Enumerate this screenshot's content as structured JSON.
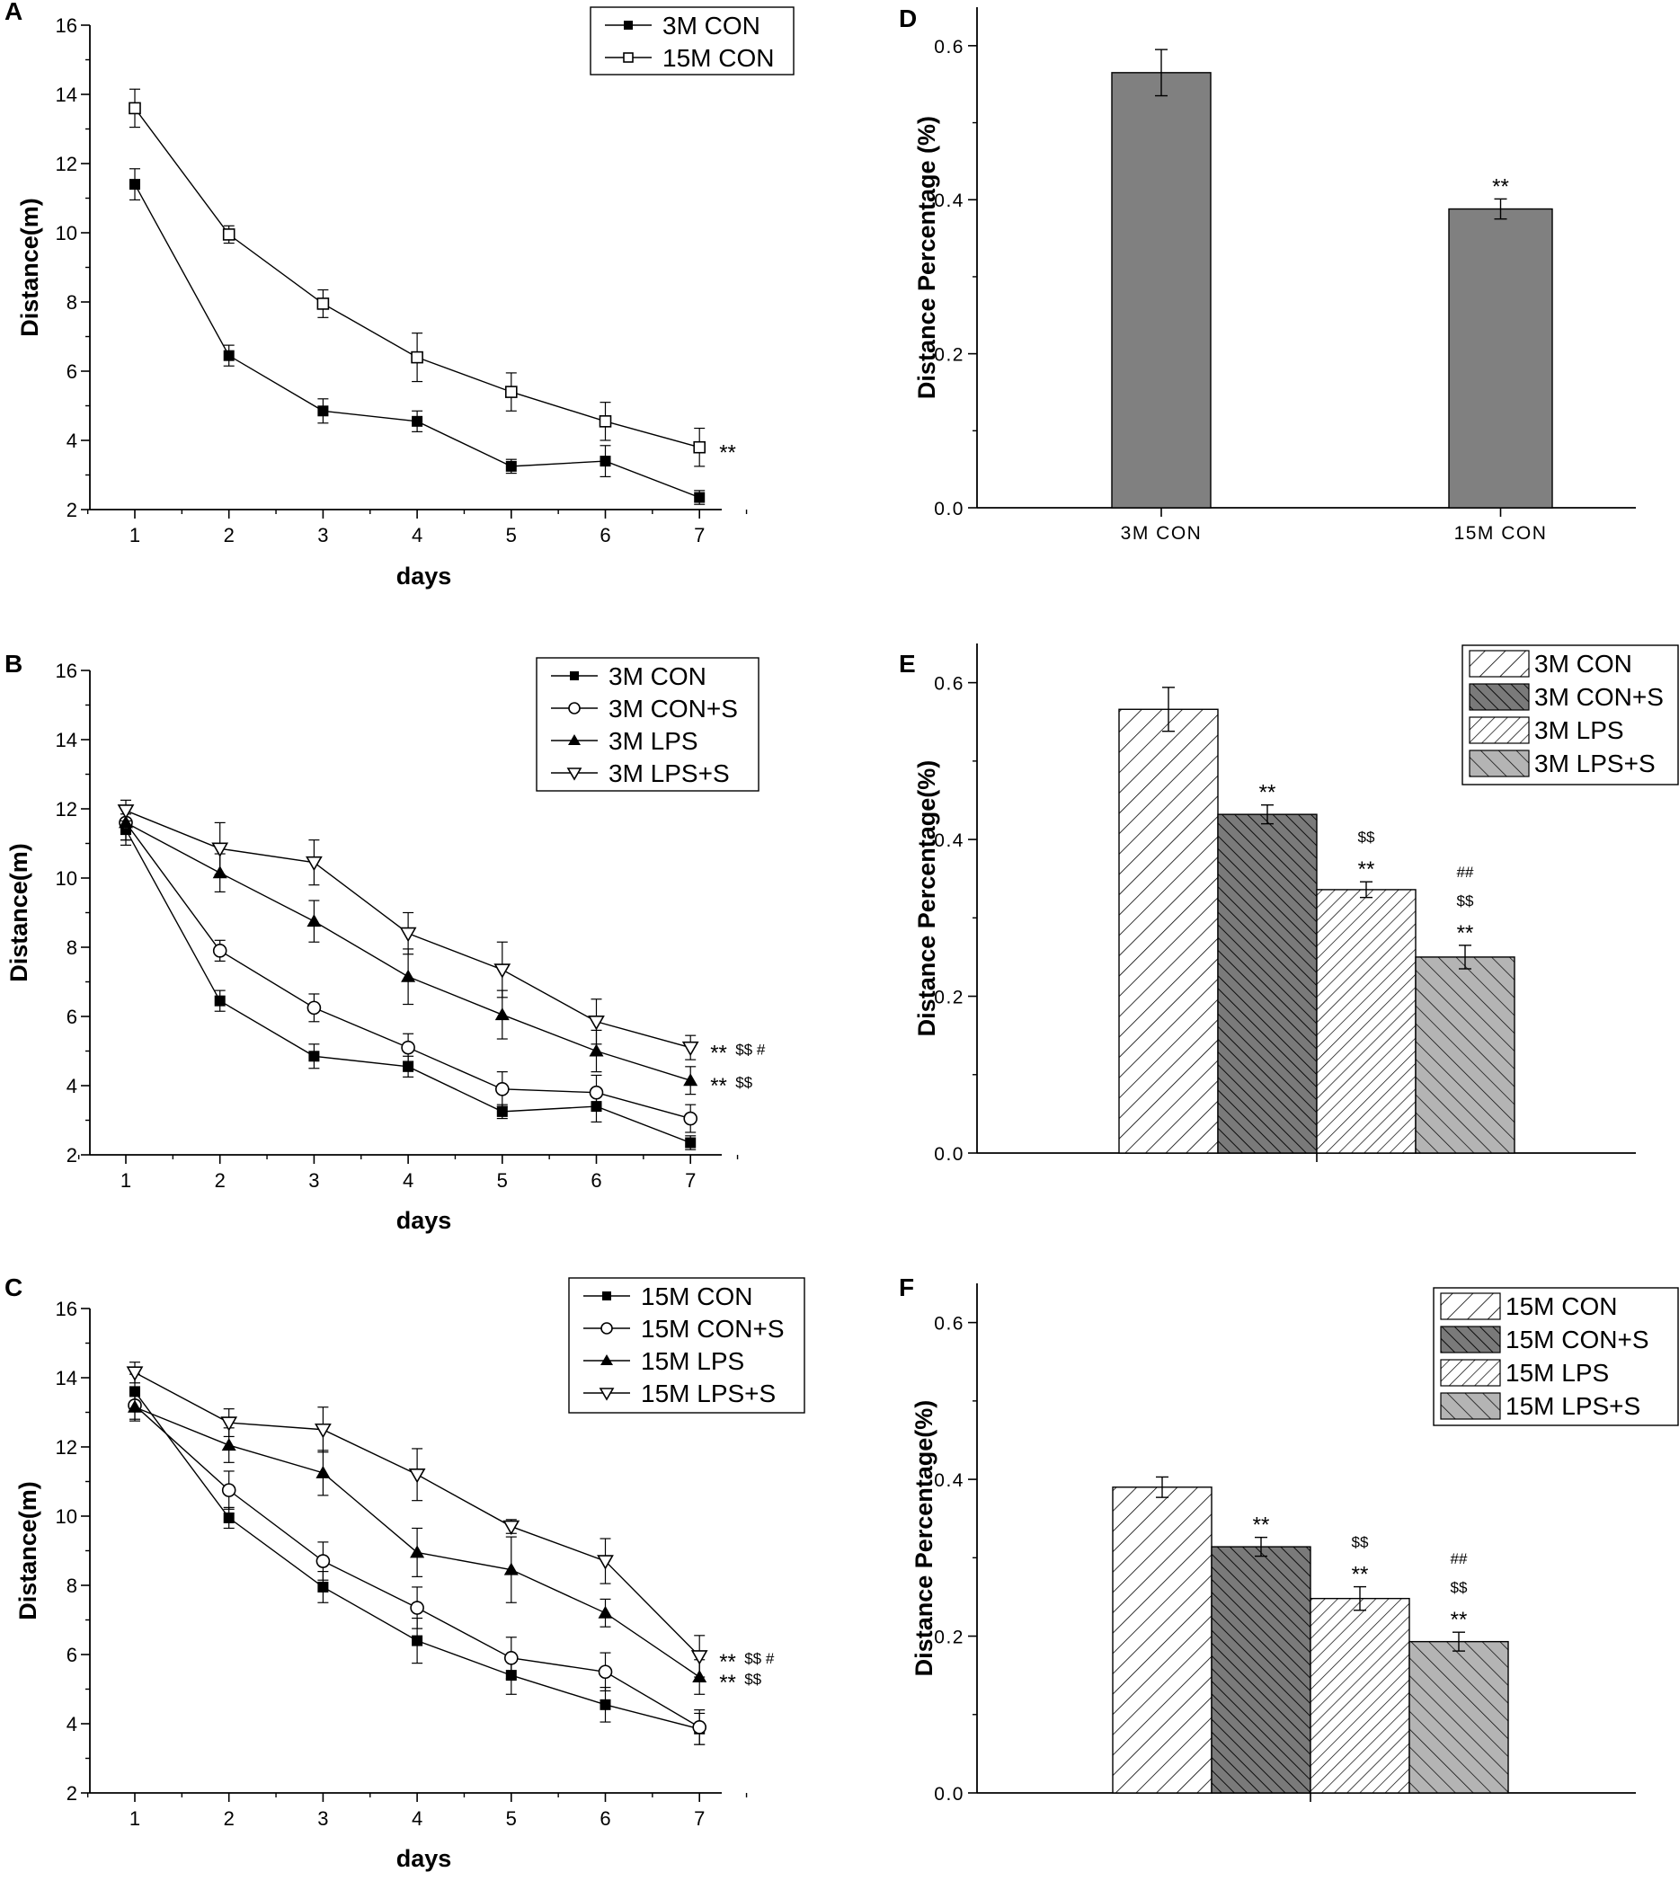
{
  "colors": {
    "axis": "#000000",
    "bar_solid": "#808080",
    "bar_dark": "#7a7a7a",
    "bar_light": "#b4b4b4",
    "background": "#ffffff"
  },
  "chart_data": [
    {
      "panel": "A",
      "type": "line",
      "xlabel": "days",
      "ylabel": "Distance(m)",
      "x": [
        1,
        2,
        3,
        4,
        5,
        6,
        7
      ],
      "xticks": [
        "1",
        "2",
        "3",
        "4",
        "5",
        "6",
        "7"
      ],
      "ylim": [
        2,
        16
      ],
      "yticks": [
        "2",
        "4",
        "6",
        "8",
        "10",
        "12",
        "14",
        "16"
      ],
      "legend": "top-right",
      "series": [
        {
          "name": "3M CON",
          "marker": "square-filled",
          "values": [
            11.4,
            6.45,
            4.85,
            4.55,
            3.25,
            3.4,
            2.35
          ],
          "errors": [
            0.45,
            0.3,
            0.35,
            0.3,
            0.2,
            0.45,
            0.2
          ]
        },
        {
          "name": "15M CON",
          "marker": "square-open",
          "values": [
            13.6,
            9.95,
            7.95,
            6.4,
            5.4,
            4.55,
            3.8
          ],
          "errors": [
            0.55,
            0.25,
            0.4,
            0.7,
            0.55,
            0.55,
            0.55
          ]
        }
      ],
      "annotations": [
        {
          "series": 1,
          "lines": [
            "**"
          ]
        }
      ]
    },
    {
      "panel": "B",
      "type": "line",
      "xlabel": "days",
      "ylabel": "Distance(m)",
      "x": [
        1,
        2,
        3,
        4,
        5,
        6,
        7
      ],
      "xticks": [
        "1",
        "2",
        "3",
        "4",
        "5",
        "6",
        "7"
      ],
      "ylim": [
        2,
        16
      ],
      "yticks": [
        "2",
        "4",
        "6",
        "8",
        "10",
        "12",
        "14",
        "16"
      ],
      "legend": "top-right",
      "series": [
        {
          "name": "3M CON",
          "marker": "square-filled",
          "values": [
            11.4,
            6.45,
            4.85,
            4.55,
            3.25,
            3.4,
            2.35
          ],
          "errors": [
            0.45,
            0.3,
            0.35,
            0.3,
            0.2,
            0.45,
            0.2
          ]
        },
        {
          "name": "3M CON+S",
          "marker": "circle-open",
          "values": [
            11.6,
            7.9,
            6.25,
            5.1,
            3.9,
            3.8,
            3.05
          ],
          "errors": [
            0.5,
            0.3,
            0.4,
            0.4,
            0.5,
            0.5,
            0.4
          ]
        },
        {
          "name": "3M LPS",
          "marker": "triangle-filled",
          "values": [
            11.6,
            10.15,
            8.75,
            7.15,
            6.05,
            5.0,
            4.15
          ],
          "errors": [
            0.5,
            0.55,
            0.6,
            0.8,
            0.7,
            0.6,
            0.4
          ]
        },
        {
          "name": "3M LPS+S",
          "marker": "triangle-down-open",
          "values": [
            11.95,
            10.85,
            10.45,
            8.4,
            7.35,
            5.85,
            5.1
          ],
          "errors": [
            0.3,
            0.75,
            0.65,
            0.6,
            0.8,
            0.65,
            0.35
          ]
        }
      ],
      "annotations": [
        {
          "series": 3,
          "text": "**",
          "sup": "$$ #"
        },
        {
          "series": 2,
          "text": "**",
          "sup": "$$"
        }
      ]
    },
    {
      "panel": "C",
      "type": "line",
      "xlabel": "days",
      "ylabel": "Distance(m)",
      "x": [
        1,
        2,
        3,
        4,
        5,
        6,
        7
      ],
      "xticks": [
        "1",
        "2",
        "3",
        "4",
        "5",
        "6",
        "7"
      ],
      "ylim": [
        2,
        16
      ],
      "yticks": [
        "2",
        "4",
        "6",
        "8",
        "10",
        "12",
        "14",
        "16"
      ],
      "legend": "top-right",
      "series": [
        {
          "name": "15M CON",
          "marker": "square-filled",
          "values": [
            13.6,
            9.95,
            7.95,
            6.4,
            5.4,
            4.55,
            3.85
          ],
          "errors": [
            0.5,
            0.3,
            0.45,
            0.65,
            0.55,
            0.5,
            0.45
          ]
        },
        {
          "name": "15M CON+S",
          "marker": "circle-open",
          "values": [
            13.2,
            10.75,
            8.7,
            7.35,
            5.9,
            5.5,
            3.9
          ],
          "errors": [
            0.45,
            0.55,
            0.55,
            0.6,
            0.6,
            0.55,
            0.5
          ]
        },
        {
          "name": "15M LPS",
          "marker": "triangle-filled",
          "values": [
            13.15,
            12.05,
            11.25,
            8.95,
            8.45,
            7.2,
            5.35
          ],
          "errors": [
            0.35,
            0.5,
            0.65,
            0.7,
            0.95,
            0.4,
            0.5
          ]
        },
        {
          "name": "15M LPS+S",
          "marker": "triangle-down-open",
          "values": [
            14.15,
            12.7,
            12.5,
            11.2,
            9.7,
            8.7,
            5.95
          ],
          "errors": [
            0.3,
            0.4,
            0.65,
            0.75,
            0.2,
            0.65,
            0.6
          ]
        }
      ],
      "annotations": [
        {
          "series": 3,
          "text": "**",
          "sup": "$$ #"
        },
        {
          "series": 2,
          "text": "**",
          "sup": "$$"
        }
      ]
    },
    {
      "panel": "D",
      "type": "bar",
      "ylabel": "Distance Percentage (%)",
      "categories": [
        "3M CON",
        "15M CON"
      ],
      "xticks": [
        "3M CON",
        "15M CON"
      ],
      "values": [
        0.565,
        0.388
      ],
      "errors": [
        0.03,
        0.013
      ],
      "ylim": [
        0,
        0.65
      ],
      "yticks": [
        "0.0",
        "0.2",
        "0.4",
        "0.6"
      ],
      "annotations": [
        [],
        [
          "**"
        ]
      ]
    },
    {
      "panel": "E",
      "type": "bar",
      "ylabel": "Distance Percentage(%)",
      "categories": [
        "3M CON",
        "3M CON+S",
        "3M LPS",
        "3M LPS+S"
      ],
      "values": [
        0.566,
        0.432,
        0.336,
        0.25
      ],
      "errors": [
        0.028,
        0.012,
        0.01,
        0.015
      ],
      "ylim": [
        0,
        0.65
      ],
      "yticks": [
        "0.0",
        "0.2",
        "0.4",
        "0.6"
      ],
      "legend": "top-right",
      "annotations": [
        [],
        [
          "**"
        ],
        [
          "$$",
          "**"
        ],
        [
          "##",
          "$$",
          "**"
        ]
      ]
    },
    {
      "panel": "F",
      "type": "bar",
      "ylabel": "Distance Percentage(%)",
      "categories": [
        "15M CON",
        "15M CON+S",
        "15M LPS",
        "15M LPS+S"
      ],
      "values": [
        0.39,
        0.314,
        0.248,
        0.193
      ],
      "errors": [
        0.013,
        0.012,
        0.015,
        0.012
      ],
      "ylim": [
        0,
        0.65
      ],
      "yticks": [
        "0.0",
        "0.2",
        "0.4",
        "0.6"
      ],
      "legend": "top-right",
      "annotations": [
        [],
        [
          "**"
        ],
        [
          "$$",
          "**"
        ],
        [
          "##",
          "$$",
          "**"
        ]
      ]
    }
  ]
}
